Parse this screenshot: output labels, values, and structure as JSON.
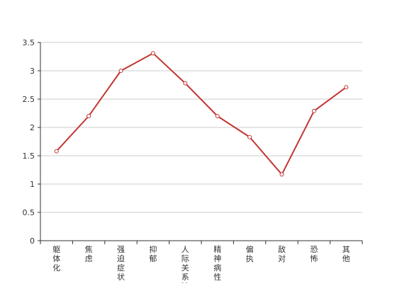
{
  "chart_data": {
    "type": "line",
    "title": "",
    "xlabel": "",
    "ylabel": "",
    "categories": [
      "躯体化",
      "焦虑",
      "强迫症状",
      "抑郁",
      "人际关系敏感",
      "精神病性",
      "偏执",
      "敌对",
      "恐怖",
      "其他"
    ],
    "series": [
      {
        "values": [
          1.58,
          2.2,
          3.0,
          3.31,
          2.78,
          2.2,
          1.83,
          1.17,
          2.29,
          2.71
        ],
        "color": "#c23531"
      }
    ],
    "ylim": [
      0,
      3.5
    ],
    "yticks": [
      "0",
      "0.5",
      "1",
      "1.5",
      "2",
      "2.5",
      "3",
      "3.5"
    ],
    "grid": true,
    "legend": "none"
  },
  "colors": {
    "grid": "#cccccc",
    "axis": "#333333",
    "line": "#c23531",
    "point_fill": "#ffffff"
  }
}
